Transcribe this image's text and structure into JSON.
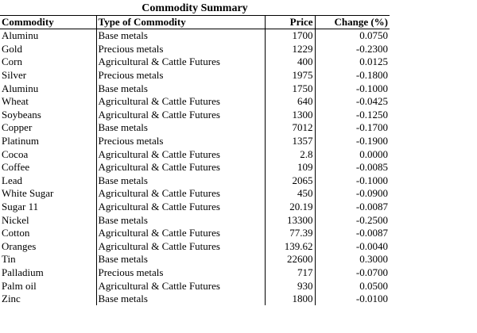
{
  "table": {
    "title": "Commodity Summary",
    "headers": [
      "Commodity",
      "Type of Commodity",
      "Price",
      "Change (%)"
    ],
    "rows": [
      [
        "Aluminu",
        "Base metals",
        "1700",
        "0.0750"
      ],
      [
        "Gold",
        "Precious metals",
        "1229",
        "-0.2300"
      ],
      [
        "Corn",
        "Agricultural & Cattle Futures",
        "400",
        "0.0125"
      ],
      [
        "Silver",
        "Precious metals",
        "1975",
        "-0.1800"
      ],
      [
        "Aluminu",
        "Base metals",
        "1750",
        "-0.1000"
      ],
      [
        "Wheat",
        "Agricultural & Cattle Futures",
        "640",
        "-0.0425"
      ],
      [
        "Soybeans",
        "Agricultural & Cattle Futures",
        "1300",
        "-0.1250"
      ],
      [
        "Copper",
        "Base metals",
        "7012",
        "-0.1700"
      ],
      [
        "Platinum",
        "Precious metals",
        "1357",
        "-0.1900"
      ],
      [
        "Cocoa",
        "Agricultural & Cattle Futures",
        "2.8",
        "0.0000"
      ],
      [
        "Coffee",
        "Agricultural & Cattle Futures",
        "109",
        "-0.0085"
      ],
      [
        "Lead",
        "Base metals",
        "2065",
        "-0.1000"
      ],
      [
        "White Sugar",
        "Agricultural & Cattle Futures",
        "450",
        "-0.0900"
      ],
      [
        "Sugar 11",
        "Agricultural & Cattle Futures",
        "20.19",
        "-0.0087"
      ],
      [
        "Nickel",
        "Base metals",
        "13300",
        "-0.2500"
      ],
      [
        "Cotton",
        "Agricultural & Cattle Futures",
        "77.39",
        "-0.0087"
      ],
      [
        "Oranges",
        "Agricultural & Cattle Futures",
        "139.62",
        "-0.0040"
      ],
      [
        "Tin",
        "Base metals",
        "22600",
        "0.3000"
      ],
      [
        "Palladium",
        "Precious metals",
        "717",
        "-0.0700"
      ],
      [
        "Palm oil",
        "Agricultural & Cattle Futures",
        "930",
        "0.0500"
      ],
      [
        "Zinc",
        "Base metals",
        "1800",
        "-0.0100"
      ]
    ]
  }
}
